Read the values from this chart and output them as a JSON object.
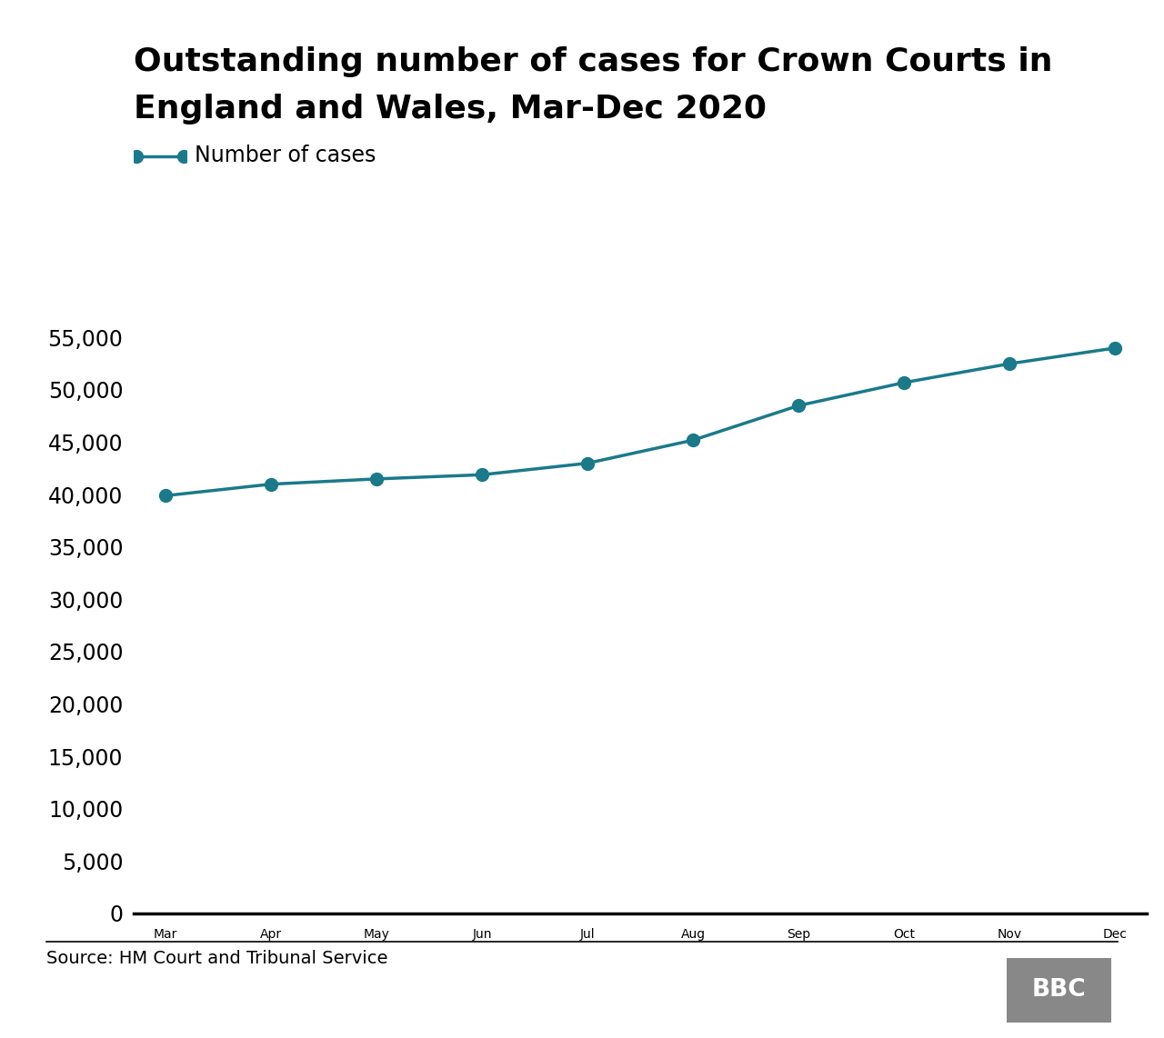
{
  "title_line1": "Outstanding number of cases for Crown Courts in",
  "title_line2": "England and Wales, Mar-Dec 2020",
  "months": [
    "Mar",
    "Apr",
    "May",
    "Jun",
    "Jul",
    "Aug",
    "Sep",
    "Oct",
    "Nov",
    "Dec"
  ],
  "values": [
    39900,
    41000,
    41500,
    41900,
    43000,
    45200,
    48500,
    50700,
    52500,
    54000
  ],
  "line_color": "#1a7a8a",
  "marker_color": "#1a7a8a",
  "background_color": "#ffffff",
  "ylim": [
    0,
    57500
  ],
  "yticks": [
    0,
    5000,
    10000,
    15000,
    20000,
    25000,
    30000,
    35000,
    40000,
    45000,
    50000,
    55000
  ],
  "legend_label": "Number of cases",
  "source_text": "Source: HM Court and Tribunal Service",
  "title_fontsize": 26,
  "tick_fontsize": 17,
  "legend_fontsize": 17,
  "source_fontsize": 14,
  "bbc_box_color": "#888888"
}
